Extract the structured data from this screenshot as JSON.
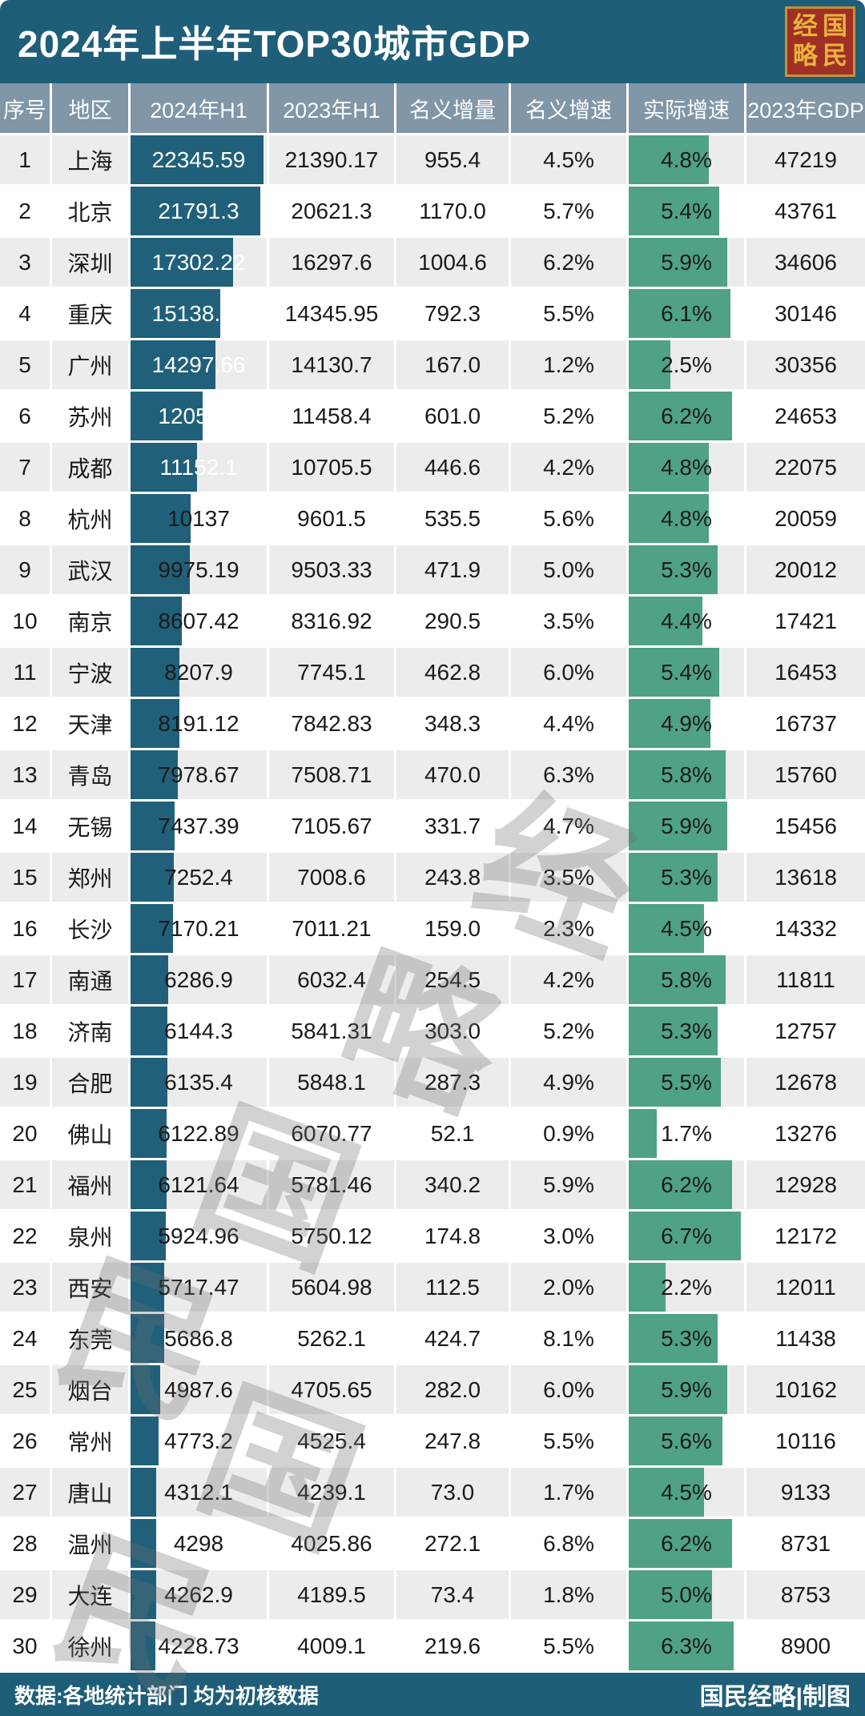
{
  "title": "2024年上半年TOP30城市GDP",
  "logo": {
    "chars": [
      "经",
      "国",
      "略",
      "民"
    ]
  },
  "footer": {
    "left": "数据:各地统计部门 均为初核数据",
    "right": "国民经略|制图"
  },
  "watermark": {
    "chars": [
      "经",
      "略",
      "国",
      "民",
      "国",
      "民"
    ]
  },
  "colors": {
    "titlebar": "#1F5E78",
    "header_row": "#8196A7",
    "bar_teal": "#20607A",
    "bar_green": "#4FA285",
    "row_alt": "#ECECEC",
    "logo_red": "#A03026",
    "logo_gold": "#E9B43C"
  },
  "chart_data": {
    "type": "table",
    "title": "2024年上半年TOP30城市GDP",
    "columns": [
      "序号",
      "地区",
      "2024年H1",
      "2023年H1",
      "名义增量",
      "名义增速",
      "实际增速",
      "2023年GDP"
    ],
    "bar_columns": {
      "2024年H1": {
        "color": "#20607A",
        "max": 22900
      },
      "实际增速": {
        "color": "#4FA285",
        "max": 6.9
      }
    },
    "rows": [
      [
        "1",
        "上海",
        "22345.59",
        "21390.17",
        "955.4",
        "4.5%",
        "4.8%",
        "47219"
      ],
      [
        "2",
        "北京",
        "21791.3",
        "20621.3",
        "1170.0",
        "5.7%",
        "5.4%",
        "43761"
      ],
      [
        "3",
        "深圳",
        "17302.22",
        "16297.6",
        "1004.6",
        "6.2%",
        "5.9%",
        "34606"
      ],
      [
        "4",
        "重庆",
        "15138.24",
        "14345.95",
        "792.3",
        "5.5%",
        "6.1%",
        "30146"
      ],
      [
        "5",
        "广州",
        "14297.66",
        "14130.7",
        "167.0",
        "1.2%",
        "2.5%",
        "30356"
      ],
      [
        "6",
        "苏州",
        "12059.4",
        "11458.4",
        "601.0",
        "5.2%",
        "6.2%",
        "24653"
      ],
      [
        "7",
        "成都",
        "11152.1",
        "10705.5",
        "446.6",
        "4.2%",
        "4.8%",
        "22075"
      ],
      [
        "8",
        "杭州",
        "10137",
        "9601.5",
        "535.5",
        "5.6%",
        "4.8%",
        "20059"
      ],
      [
        "9",
        "武汉",
        "9975.19",
        "9503.33",
        "471.9",
        "5.0%",
        "5.3%",
        "20012"
      ],
      [
        "10",
        "南京",
        "8607.42",
        "8316.92",
        "290.5",
        "3.5%",
        "4.4%",
        "17421"
      ],
      [
        "11",
        "宁波",
        "8207.9",
        "7745.1",
        "462.8",
        "6.0%",
        "5.4%",
        "16453"
      ],
      [
        "12",
        "天津",
        "8191.12",
        "7842.83",
        "348.3",
        "4.4%",
        "4.9%",
        "16737"
      ],
      [
        "13",
        "青岛",
        "7978.67",
        "7508.71",
        "470.0",
        "6.3%",
        "5.8%",
        "15760"
      ],
      [
        "14",
        "无锡",
        "7437.39",
        "7105.67",
        "331.7",
        "4.7%",
        "5.9%",
        "15456"
      ],
      [
        "15",
        "郑州",
        "7252.4",
        "7008.6",
        "243.8",
        "3.5%",
        "5.3%",
        "13618"
      ],
      [
        "16",
        "长沙",
        "7170.21",
        "7011.21",
        "159.0",
        "2.3%",
        "4.5%",
        "14332"
      ],
      [
        "17",
        "南通",
        "6286.9",
        "6032.4",
        "254.5",
        "4.2%",
        "5.8%",
        "11811"
      ],
      [
        "18",
        "济南",
        "6144.3",
        "5841.31",
        "303.0",
        "5.2%",
        "5.3%",
        "12757"
      ],
      [
        "19",
        "合肥",
        "6135.4",
        "5848.1",
        "287.3",
        "4.9%",
        "5.5%",
        "12678"
      ],
      [
        "20",
        "佛山",
        "6122.89",
        "6070.77",
        "52.1",
        "0.9%",
        "1.7%",
        "13276"
      ],
      [
        "21",
        "福州",
        "6121.64",
        "5781.46",
        "340.2",
        "5.9%",
        "6.2%",
        "12928"
      ],
      [
        "22",
        "泉州",
        "5924.96",
        "5750.12",
        "174.8",
        "3.0%",
        "6.7%",
        "12172"
      ],
      [
        "23",
        "西安",
        "5717.47",
        "5604.98",
        "112.5",
        "2.0%",
        "2.2%",
        "12011"
      ],
      [
        "24",
        "东莞",
        "5686.8",
        "5262.1",
        "424.7",
        "8.1%",
        "5.3%",
        "11438"
      ],
      [
        "25",
        "烟台",
        "4987.6",
        "4705.65",
        "282.0",
        "6.0%",
        "5.9%",
        "10162"
      ],
      [
        "26",
        "常州",
        "4773.2",
        "4525.4",
        "247.8",
        "5.5%",
        "5.6%",
        "10116"
      ],
      [
        "27",
        "唐山",
        "4312.1",
        "4239.1",
        "73.0",
        "1.7%",
        "4.5%",
        "9133"
      ],
      [
        "28",
        "温州",
        "4298",
        "4025.86",
        "272.1",
        "6.8%",
        "6.2%",
        "8731"
      ],
      [
        "29",
        "大连",
        "4262.9",
        "4189.5",
        "73.4",
        "1.8%",
        "5.0%",
        "8753"
      ],
      [
        "30",
        "徐州",
        "4228.73",
        "4009.1",
        "219.6",
        "5.5%",
        "6.3%",
        "8900"
      ]
    ]
  }
}
